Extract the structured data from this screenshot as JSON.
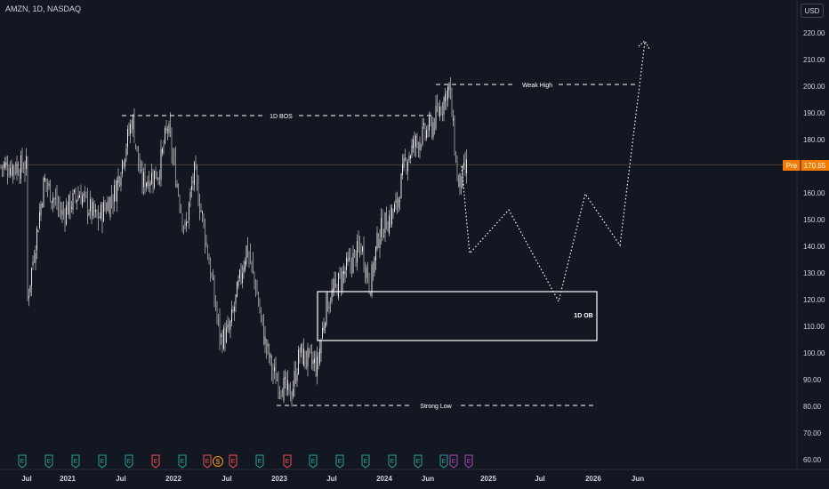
{
  "header": {
    "symbol": "AMZN, 1D, NASDAQ",
    "currency": "USD"
  },
  "price_axis": {
    "ticks": [
      "220.00",
      "210.00",
      "200.00",
      "190.00",
      "180.00",
      "170.00",
      "160.00",
      "150.00",
      "140.00",
      "130.00",
      "120.00",
      "110.00",
      "100.00",
      "90.00",
      "80.00",
      "70.00",
      "60.00"
    ],
    "current_tag": "Pre",
    "current_value": "170.55",
    "current_price": 170.55
  },
  "time_axis": {
    "labels": [
      "Jul",
      "2021",
      "Jul",
      "2022",
      "Jul",
      "2023",
      "Jul",
      "2024",
      "Jun",
      "2025",
      "Jul",
      "2026",
      "Jun"
    ]
  },
  "annotations": {
    "bos": "1D BOS",
    "weak_high": "Weak High",
    "strong_low": "Strong Low",
    "order_block": "1D OB"
  },
  "events": [
    "E",
    "E",
    "E",
    "E",
    "E",
    "E",
    "E",
    "E",
    "$",
    "E",
    "E",
    "E",
    "E",
    "E",
    "E",
    "E",
    "E",
    "E",
    "E",
    "E",
    "E"
  ],
  "colors": {
    "background": "#131722",
    "text": "#d1d4dc",
    "candles": "#e6e6e6",
    "price_tag": "#f57c00",
    "earnings": "#26a69a",
    "earnings_miss": "#ef5350",
    "dividend": "#f59e0b",
    "future_event": "#ab47bc"
  },
  "chart_data": {
    "type": "candlestick",
    "symbol": "AMZN",
    "interval": "1D",
    "exchange": "NASDAQ",
    "ylim": [
      58,
      228
    ],
    "price_path": [
      [
        "2020-07",
        118
      ],
      [
        "2020-09",
        165
      ],
      [
        "2020-11",
        152
      ],
      [
        "2021-01",
        160
      ],
      [
        "2021-03",
        150
      ],
      [
        "2021-05",
        160
      ],
      [
        "2021-07",
        188
      ],
      [
        "2021-08",
        164
      ],
      [
        "2021-10",
        168
      ],
      [
        "2021-11",
        185
      ],
      [
        "2021-12",
        165
      ],
      [
        "2022-01",
        145
      ],
      [
        "2022-02",
        168
      ],
      [
        "2022-03",
        150
      ],
      [
        "2022-05",
        105
      ],
      [
        "2022-06",
        108
      ],
      [
        "2022-08",
        140
      ],
      [
        "2022-09",
        125
      ],
      [
        "2022-10",
        105
      ],
      [
        "2022-11",
        92
      ],
      [
        "2023-01",
        84
      ],
      [
        "2023-02",
        100
      ],
      [
        "2023-04",
        95
      ],
      [
        "2023-05",
        118
      ],
      [
        "2023-07",
        130
      ],
      [
        "2023-09",
        140
      ],
      [
        "2023-10",
        125
      ],
      [
        "2023-11",
        145
      ],
      [
        "2024-01",
        155
      ],
      [
        "2024-02",
        172
      ],
      [
        "2024-03",
        178
      ],
      [
        "2024-05",
        185
      ],
      [
        "2024-07",
        200
      ],
      [
        "2024-08",
        162
      ],
      [
        "2024-09",
        170
      ]
    ],
    "levels": [
      {
        "label": "1D BOS",
        "price": 189
      },
      {
        "label": "Weak High",
        "price": 201
      },
      {
        "label": "Strong Low",
        "price": 81
      }
    ],
    "zones": [
      {
        "label": "1D OB",
        "top": 123,
        "bottom": 105
      }
    ],
    "projection": [
      [
        "2024-09",
        169
      ],
      [
        "2024-10",
        138
      ],
      [
        "2025-01",
        154
      ],
      [
        "2025-08",
        119
      ],
      [
        "2025-11",
        160
      ],
      [
        "2026-03",
        141
      ],
      [
        "2026-08",
        217
      ]
    ]
  }
}
